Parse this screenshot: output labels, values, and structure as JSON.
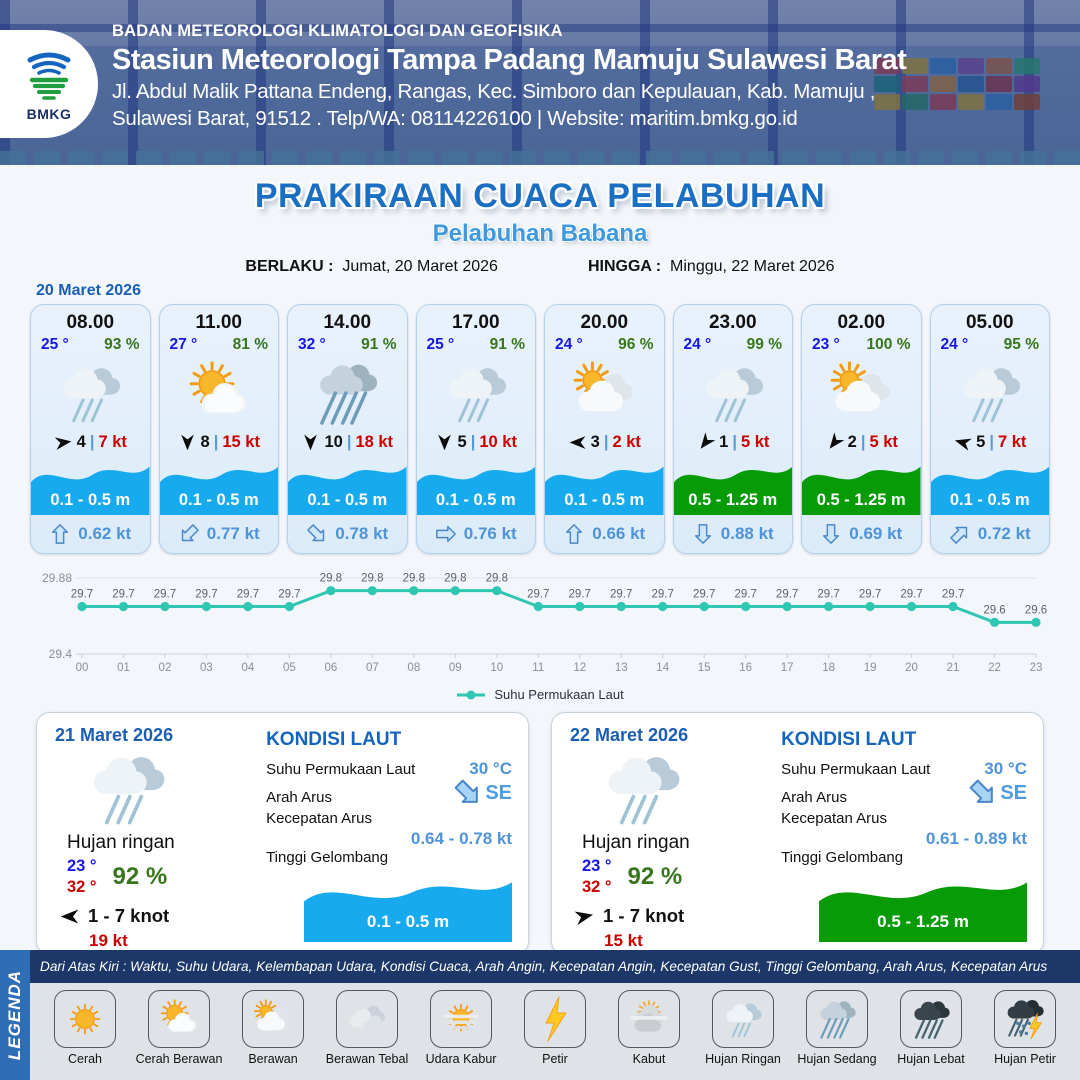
{
  "header": {
    "logo_text": "BMKG",
    "agency": "BADAN METEOROLOGI KLIMATOLOGI DAN GEOFISIKA",
    "station": "Stasiun Meteorologi Tampa Padang Mamuju Sulawesi Barat",
    "address_line1": "Jl. Abdul Malik Pattana Endeng, Rangas, Kec. Simboro dan Kepulauan, Kab. Mamuju ,",
    "address_line2": "Sulawesi Barat, 91512 . Telp/WA: 08114226100 | Website: maritim.bmkg.go.id"
  },
  "title": {
    "main": "PRAKIRAAN CUACA PELABUHAN",
    "subtitle": "Pelabuhan Babana"
  },
  "validity": {
    "berlaku_label": "BERLAKU :",
    "berlaku_value": "Jumat, 20 Maret 2026",
    "hingga_label": "HINGGA :",
    "hingga_value": "Minggu, 22 Maret 2026"
  },
  "forecast": {
    "date_label": "20 Maret 2026",
    "cards": [
      {
        "time": "08.00",
        "temp": "25 °",
        "humidity": "93 %",
        "icon": "hujan-ringan",
        "wind_dir_deg": -8,
        "wind_speed": "4",
        "gust": "7 kt",
        "wave_height": "0.1 - 0.5 m",
        "wave_color": "blue",
        "current_dir_deg": 0,
        "current_speed": "0.62 kt"
      },
      {
        "time": "11.00",
        "temp": "27 °",
        "humidity": "81 %",
        "icon": "cerah-berawan",
        "wind_dir_deg": 90,
        "wind_speed": "8",
        "gust": "15 kt",
        "wave_height": "0.1 - 0.5 m",
        "wave_color": "blue",
        "current_dir_deg": 225,
        "current_speed": "0.77 kt"
      },
      {
        "time": "14.00",
        "temp": "32 °",
        "humidity": "91 %",
        "icon": "hujan-sedang",
        "wind_dir_deg": 90,
        "wind_speed": "10",
        "gust": "18 kt",
        "wave_height": "0.1 - 0.5 m",
        "wave_color": "blue",
        "current_dir_deg": 135,
        "current_speed": "0.78 kt"
      },
      {
        "time": "17.00",
        "temp": "25 °",
        "humidity": "91 %",
        "icon": "hujan-ringan",
        "wind_dir_deg": 90,
        "wind_speed": "5",
        "gust": "10 kt",
        "wave_height": "0.1 - 0.5 m",
        "wave_color": "blue",
        "current_dir_deg": 90,
        "current_speed": "0.76 kt"
      },
      {
        "time": "20.00",
        "temp": "24 °",
        "humidity": "96 %",
        "icon": "berawan",
        "wind_dir_deg": 180,
        "wind_speed": "3",
        "gust": "2 kt",
        "wave_height": "0.1 - 0.5 m",
        "wave_color": "blue",
        "current_dir_deg": 0,
        "current_speed": "0.66 kt"
      },
      {
        "time": "23.00",
        "temp": "24 °",
        "humidity": "99 %",
        "icon": "hujan-ringan",
        "wind_dir_deg": 128,
        "wind_speed": "1",
        "gust": "5 kt",
        "wave_height": "0.5 - 1.25 m",
        "wave_color": "green",
        "current_dir_deg": 180,
        "current_speed": "0.88 kt"
      },
      {
        "time": "02.00",
        "temp": "23 °",
        "humidity": "100 %",
        "icon": "berawan",
        "wind_dir_deg": 128,
        "wind_speed": "2",
        "gust": "5 kt",
        "wave_height": "0.5 - 1.25 m",
        "wave_color": "green",
        "current_dir_deg": 180,
        "current_speed": "0.69 kt"
      },
      {
        "time": "05.00",
        "temp": "24 °",
        "humidity": "95 %",
        "icon": "hujan-ringan",
        "wind_dir_deg": 196,
        "wind_speed": "5",
        "gust": "7 kt",
        "wave_height": "0.1 - 0.5 m",
        "wave_color": "blue",
        "current_dir_deg": 45,
        "current_speed": "0.72 kt"
      }
    ]
  },
  "chart_data": {
    "type": "line",
    "x": [
      "00",
      "01",
      "02",
      "03",
      "04",
      "05",
      "06",
      "07",
      "08",
      "09",
      "10",
      "11",
      "12",
      "13",
      "14",
      "15",
      "16",
      "17",
      "18",
      "19",
      "20",
      "21",
      "22",
      "23"
    ],
    "series": [
      {
        "name": "Suhu Permukaan Laut",
        "values": [
          29.7,
          29.7,
          29.7,
          29.7,
          29.7,
          29.7,
          29.8,
          29.8,
          29.8,
          29.8,
          29.8,
          29.7,
          29.7,
          29.7,
          29.7,
          29.7,
          29.7,
          29.7,
          29.7,
          29.7,
          29.7,
          29.7,
          29.6,
          29.6
        ]
      }
    ],
    "ylim": [
      29.4,
      29.88
    ],
    "ytick_labels": [
      "29.88",
      "29.4"
    ],
    "grid": true,
    "legend_position": "bottom",
    "line_color": "#2fc7b2"
  },
  "day_cards": [
    {
      "date": "21 Maret 2026",
      "icon": "hujan-ringan",
      "condition": "Hujan ringan",
      "temp_min": "23 °",
      "temp_max": "32 °",
      "humidity": "92 %",
      "wind_dir_deg": 180,
      "wind_range": "1  - 7 knot",
      "gust": "19 kt",
      "sea": {
        "title": "KONDISI LAUT",
        "sst_label": "Suhu Permukaan Laut",
        "sst": "30 °C",
        "dir_label": "Arah Arus",
        "dir": "SE",
        "dir_deg": 135,
        "speed_label": "Kecepatan Arus",
        "speed": "0.64  - 0.78 kt",
        "wave_label": "Tinggi Gelombang",
        "wave": "0.1 - 0.5 m",
        "wave_color": "blue"
      }
    },
    {
      "date": "22 Maret 2026",
      "icon": "hujan-ringan",
      "condition": "Hujan ringan",
      "temp_min": "23 °",
      "temp_max": "32 °",
      "humidity": "92 %",
      "wind_dir_deg": -12,
      "wind_range": "1  - 7 knot",
      "gust": "15 kt",
      "sea": {
        "title": "KONDISI LAUT",
        "sst_label": "Suhu Permukaan Laut",
        "sst": "30 °C",
        "dir_label": "Arah Arus",
        "dir": "SE",
        "dir_deg": 135,
        "speed_label": "Kecepatan Arus",
        "speed": "0.61  - 0.89 kt",
        "wave_label": "Tinggi Gelombang",
        "wave": "0.5 - 1.25 m",
        "wave_color": "green"
      }
    }
  ],
  "legend": {
    "title": "LEGENDA",
    "note": "Dari Atas Kiri : Waktu, Suhu Udara, Kelembapan Udara, Kondisi Cuaca, Arah Angin, Kecepatan Angin, Kecepatan Gust, Tinggi Gelombang, Arah Arus, Kecepatan Arus",
    "items": [
      {
        "icon": "cerah",
        "label": "Cerah"
      },
      {
        "icon": "cerah-berawan",
        "label": "Cerah Berawan"
      },
      {
        "icon": "berawan",
        "label": "Berawan"
      },
      {
        "icon": "berawan-tebal",
        "label": "Berawan Tebal"
      },
      {
        "icon": "udara-kabur",
        "label": "Udara Kabur"
      },
      {
        "icon": "petir",
        "label": "Petir"
      },
      {
        "icon": "kabut",
        "label": "Kabut"
      },
      {
        "icon": "hujan-ringan",
        "label": "Hujan Ringan"
      },
      {
        "icon": "hujan-sedang",
        "label": "Hujan Sedang"
      },
      {
        "icon": "hujan-lebat",
        "label": "Hujan Lebat"
      },
      {
        "icon": "hujan-petir",
        "label": "Hujan Petir"
      }
    ]
  },
  "colors": {
    "wave_blue": "#18aaee",
    "wave_green": "#089b08",
    "temp_blue": "#1616e6",
    "humidity_green": "#38761d",
    "gust_red": "#cc0000",
    "current_blue": "#4f93d9",
    "chart_teal": "#2fc7b2",
    "title_blue": "#1b6fc2",
    "subtitle_blue": "#3d9ae0",
    "note_bar": "#1d3868",
    "legenda_bar": "#2f6db5"
  }
}
